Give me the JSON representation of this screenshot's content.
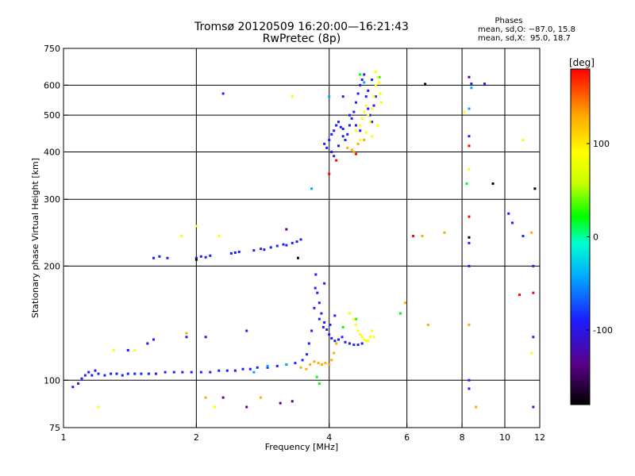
{
  "header": {
    "title_line1": "Tromsø 20120509 16:20:00—16:21:43",
    "title_line2": "RwPretec (8p)",
    "phases_title": "Phases",
    "phases_o": "mean, sd,O: −87.0, 15.8",
    "phases_x": "mean, sd,X:  95.0, 18.7"
  },
  "colors": {
    "frame": "#000000",
    "grid": "#000000",
    "scale_stops": [
      "#000000",
      "#5a0088",
      "#1c1cff",
      "#00a8ff",
      "#00ffd0",
      "#00ff00",
      "#c8ff00",
      "#ffff00",
      "#ffaa00",
      "#ff0000"
    ]
  },
  "chart_data": {
    "type": "scatter",
    "xlabel": "Frequency [MHz]",
    "ylabel": "Stationary phase Virtual Height [km]",
    "xscale": "log",
    "yscale": "log",
    "xlim": [
      1,
      12
    ],
    "ylim": [
      75,
      750
    ],
    "x_ticks": [
      1,
      2,
      4,
      6,
      8,
      10,
      12
    ],
    "y_ticks": [
      75,
      100,
      200,
      300,
      400,
      500,
      600,
      750
    ],
    "grid": true,
    "colorbar": {
      "label": "[deg]",
      "range": [
        -180,
        180
      ],
      "ticks": [
        100,
        0,
        -100
      ]
    },
    "series": [
      {
        "phase": -100,
        "points": [
          [
            1.05,
            96
          ],
          [
            1.08,
            98
          ],
          [
            1.1,
            101
          ],
          [
            1.12,
            103
          ],
          [
            1.14,
            105
          ],
          [
            1.16,
            103
          ],
          [
            1.18,
            106
          ],
          [
            1.2,
            104
          ],
          [
            1.24,
            103
          ],
          [
            1.28,
            104
          ],
          [
            1.32,
            104
          ],
          [
            1.36,
            103
          ],
          [
            1.4,
            104
          ],
          [
            1.45,
            104
          ],
          [
            1.5,
            104
          ],
          [
            1.56,
            104
          ],
          [
            1.62,
            104
          ],
          [
            1.7,
            105
          ],
          [
            1.78,
            105
          ],
          [
            1.86,
            105
          ],
          [
            1.95,
            105
          ],
          [
            2.05,
            105
          ],
          [
            2.15,
            105
          ],
          [
            2.25,
            106
          ],
          [
            2.35,
            106
          ],
          [
            2.45,
            106
          ],
          [
            2.55,
            107
          ],
          [
            2.65,
            107
          ],
          [
            2.75,
            108
          ],
          [
            2.9,
            108
          ],
          [
            3.05,
            109
          ],
          [
            3.2,
            110
          ],
          [
            3.35,
            111
          ],
          [
            3.48,
            113
          ],
          [
            3.56,
            117
          ],
          [
            3.6,
            125
          ],
          [
            3.65,
            135
          ],
          [
            3.7,
            155
          ],
          [
            3.72,
            175
          ],
          [
            3.76,
            170
          ],
          [
            3.8,
            160
          ],
          [
            3.84,
            150
          ],
          [
            3.9,
            142
          ],
          [
            3.95,
            136
          ],
          [
            4.0,
            132
          ],
          [
            4.05,
            129
          ],
          [
            4.12,
            127
          ],
          [
            4.2,
            128
          ],
          [
            4.28,
            130
          ],
          [
            4.35,
            126
          ],
          [
            4.45,
            125
          ],
          [
            4.55,
            124
          ],
          [
            4.65,
            124
          ],
          [
            4.75,
            125
          ],
          [
            3.73,
            190
          ],
          [
            3.8,
            145
          ],
          [
            3.88,
            138
          ],
          [
            4.02,
            140
          ],
          [
            4.12,
            148
          ],
          [
            1.6,
            210
          ],
          [
            1.65,
            212
          ],
          [
            1.72,
            210
          ],
          [
            2.0,
            210
          ],
          [
            2.05,
            212
          ],
          [
            2.1,
            211
          ],
          [
            2.15,
            213
          ],
          [
            2.4,
            216
          ],
          [
            2.45,
            217
          ],
          [
            2.5,
            218
          ],
          [
            2.7,
            220
          ],
          [
            2.8,
            222
          ],
          [
            2.85,
            221
          ],
          [
            2.95,
            224
          ],
          [
            3.05,
            226
          ],
          [
            3.15,
            228
          ],
          [
            3.2,
            227
          ],
          [
            3.3,
            230
          ],
          [
            3.38,
            232
          ],
          [
            3.45,
            235
          ],
          [
            3.9,
            420
          ],
          [
            3.95,
            410
          ],
          [
            4.0,
            430
          ],
          [
            4.05,
            445
          ],
          [
            4.1,
            455
          ],
          [
            4.15,
            470
          ],
          [
            4.2,
            480
          ],
          [
            4.25,
            465
          ],
          [
            4.3,
            440
          ],
          [
            4.35,
            430
          ],
          [
            4.4,
            445
          ],
          [
            4.45,
            470
          ],
          [
            4.5,
            490
          ],
          [
            4.55,
            510
          ],
          [
            4.6,
            540
          ],
          [
            4.65,
            570
          ],
          [
            4.7,
            600
          ],
          [
            4.75,
            620
          ],
          [
            4.8,
            640
          ],
          [
            4.85,
            560
          ],
          [
            4.9,
            520
          ],
          [
            4.95,
            500
          ],
          [
            5.0,
            480
          ],
          [
            5.05,
            530
          ],
          [
            5.1,
            560
          ],
          [
            4.05,
            400
          ],
          [
            4.1,
            390
          ],
          [
            4.2,
            415
          ],
          [
            4.3,
            460
          ],
          [
            4.45,
            500
          ],
          [
            4.6,
            470
          ],
          [
            4.7,
            455
          ],
          [
            4.9,
            580
          ],
          [
            5.0,
            620
          ],
          [
            1.4,
            120
          ],
          [
            1.55,
            125
          ],
          [
            1.6,
            128
          ],
          [
            1.9,
            130
          ],
          [
            2.1,
            130
          ],
          [
            2.6,
            135
          ],
          [
            3.9,
            180
          ],
          [
            4.3,
            560
          ],
          [
            8.3,
            200
          ],
          [
            8.3,
            230
          ],
          [
            8.3,
            440
          ],
          [
            8.3,
            95
          ],
          [
            8.3,
            100
          ],
          [
            11.6,
            85
          ],
          [
            11.6,
            130
          ],
          [
            11.6,
            200
          ],
          [
            10.2,
            275
          ],
          [
            10.4,
            260
          ],
          [
            11.0,
            240
          ],
          [
            2.3,
            570
          ],
          [
            9.0,
            605
          ],
          [
            8.4,
            605
          ]
        ]
      },
      {
        "phase": -120,
        "points": [
          [
            3.2,
            250
          ],
          [
            2.6,
            85
          ],
          [
            2.3,
            90
          ],
          [
            8.3,
            630
          ],
          [
            3.1,
            87
          ],
          [
            3.3,
            88
          ]
        ]
      },
      {
        "phase": -150,
        "points": [
          [
            2.0,
            208
          ],
          [
            6.6,
            604
          ],
          [
            8.3,
            238
          ],
          [
            11.7,
            320
          ],
          [
            9.4,
            330
          ],
          [
            3.4,
            210
          ]
        ]
      },
      {
        "phase": -50,
        "points": [
          [
            3.65,
            320
          ],
          [
            2.7,
            105
          ],
          [
            2.9,
            109
          ],
          [
            3.2,
            110
          ],
          [
            4.0,
            560
          ],
          [
            4.8,
            610
          ],
          [
            8.3,
            520
          ],
          [
            8.4,
            590
          ]
        ]
      },
      {
        "phase": 0,
        "points": [
          [
            3.75,
            102
          ],
          [
            3.8,
            98
          ],
          [
            4.3,
            138
          ],
          [
            4.6,
            145
          ],
          [
            4.7,
            640
          ],
          [
            5.2,
            630
          ],
          [
            8.2,
            330
          ],
          [
            5.8,
            150
          ]
        ]
      },
      {
        "phase": 100,
        "points": [
          [
            4.45,
            150
          ],
          [
            4.55,
            145
          ],
          [
            4.6,
            140
          ],
          [
            4.65,
            135
          ],
          [
            4.7,
            132
          ],
          [
            4.75,
            130
          ],
          [
            4.8,
            128
          ],
          [
            4.85,
            127
          ],
          [
            4.9,
            127
          ],
          [
            4.95,
            130
          ],
          [
            5.0,
            135
          ],
          [
            5.05,
            130
          ],
          [
            4.6,
            455
          ],
          [
            4.7,
            470
          ],
          [
            4.75,
            490
          ],
          [
            4.8,
            510
          ],
          [
            4.85,
            530
          ],
          [
            4.9,
            500
          ],
          [
            4.95,
            480
          ],
          [
            5.0,
            520
          ],
          [
            5.05,
            560
          ],
          [
            5.1,
            600
          ],
          [
            5.15,
            630
          ],
          [
            5.2,
            610
          ],
          [
            5.22,
            570
          ],
          [
            5.25,
            540
          ],
          [
            5.15,
            470
          ],
          [
            5.0,
            440
          ],
          [
            4.85,
            450
          ],
          [
            4.7,
            430
          ],
          [
            5.1,
            650
          ],
          [
            1.3,
            120
          ],
          [
            1.45,
            120
          ],
          [
            1.85,
            240
          ],
          [
            2.25,
            240
          ],
          [
            3.3,
            560
          ],
          [
            8.1,
            510
          ],
          [
            8.3,
            360
          ],
          [
            11.0,
            430
          ],
          [
            11.5,
            118
          ],
          [
            1.2,
            85
          ],
          [
            2.2,
            85
          ],
          [
            2.0,
            255
          ]
        ]
      },
      {
        "phase": 140,
        "points": [
          [
            3.45,
            108
          ],
          [
            3.55,
            107
          ],
          [
            3.62,
            110
          ],
          [
            3.7,
            112
          ],
          [
            3.78,
            111
          ],
          [
            3.85,
            110
          ],
          [
            3.92,
            111
          ],
          [
            4.0,
            110
          ],
          [
            4.05,
            113
          ],
          [
            4.1,
            118
          ],
          [
            4.15,
            125
          ],
          [
            4.4,
            410
          ],
          [
            4.5,
            405
          ],
          [
            4.55,
            400
          ],
          [
            4.65,
            420
          ],
          [
            4.8,
            430
          ],
          [
            1.9,
            133
          ],
          [
            2.1,
            90
          ],
          [
            2.8,
            90
          ],
          [
            6.5,
            240
          ],
          [
            7.3,
            245
          ],
          [
            8.6,
            85
          ],
          [
            11.5,
            245
          ],
          [
            8.3,
            140
          ],
          [
            5.95,
            160
          ],
          [
            6.7,
            140
          ]
        ]
      },
      {
        "phase": 170,
        "points": [
          [
            4.0,
            350
          ],
          [
            4.15,
            380
          ],
          [
            4.6,
            395
          ],
          [
            6.2,
            240
          ],
          [
            8.3,
            270
          ],
          [
            8.3,
            415
          ],
          [
            11.6,
            170
          ],
          [
            10.8,
            168
          ]
        ]
      }
    ]
  }
}
